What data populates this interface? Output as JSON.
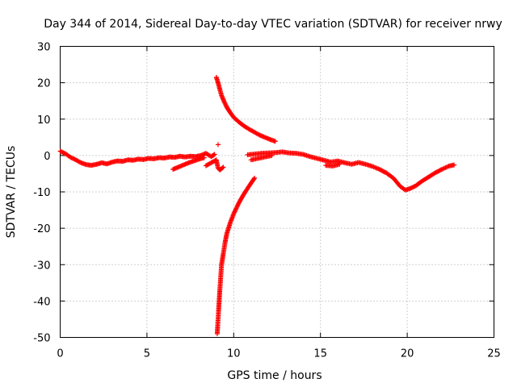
{
  "chart_data": {
    "type": "scatter",
    "title": "Day 344 of 2014, Sidereal Day-to-day VTEC variation (SDTVAR) for receiver nrwy",
    "xlabel": "GPS time / hours",
    "ylabel": "SDTVAR / TECUs",
    "xlim": [
      0,
      25
    ],
    "ylim": [
      -50,
      30
    ],
    "xticks": [
      0,
      5,
      10,
      15,
      20,
      25
    ],
    "yticks": [
      -50,
      -40,
      -30,
      -20,
      -10,
      0,
      10,
      20,
      30
    ],
    "grid": true,
    "marker": "+",
    "color": "#ff0000",
    "series": [
      {
        "name": "main-trace",
        "points": [
          [
            0.0,
            1.2
          ],
          [
            0.3,
            0.5
          ],
          [
            0.6,
            -0.5
          ],
          [
            0.9,
            -1.2
          ],
          [
            1.2,
            -2.0
          ],
          [
            1.5,
            -2.5
          ],
          [
            1.8,
            -2.7
          ],
          [
            2.1,
            -2.4
          ],
          [
            2.4,
            -2.0
          ],
          [
            2.7,
            -2.3
          ],
          [
            3.0,
            -1.8
          ],
          [
            3.3,
            -1.5
          ],
          [
            3.6,
            -1.6
          ],
          [
            3.9,
            -1.2
          ],
          [
            4.2,
            -1.3
          ],
          [
            4.5,
            -1.0
          ],
          [
            4.8,
            -1.1
          ],
          [
            5.1,
            -0.8
          ],
          [
            5.4,
            -0.9
          ],
          [
            5.7,
            -0.6
          ],
          [
            6.0,
            -0.7
          ],
          [
            6.3,
            -0.4
          ],
          [
            6.6,
            -0.5
          ],
          [
            6.9,
            -0.2
          ],
          [
            7.2,
            -0.4
          ],
          [
            7.5,
            -0.2
          ],
          [
            7.8,
            -0.3
          ],
          [
            8.1,
            0.0
          ],
          [
            8.4,
            0.6
          ],
          [
            8.7,
            -0.3
          ],
          [
            8.9,
            0.3
          ]
        ]
      },
      {
        "name": "lower-branch-left",
        "points": [
          [
            6.5,
            -3.8
          ],
          [
            6.8,
            -3.2
          ],
          [
            7.1,
            -2.6
          ],
          [
            7.4,
            -2.0
          ],
          [
            7.7,
            -1.5
          ],
          [
            8.0,
            -1.0
          ],
          [
            8.3,
            -0.6
          ]
        ]
      },
      {
        "name": "upper-right-branch",
        "points": [
          [
            9.0,
            21.5
          ],
          [
            9.1,
            20.0
          ],
          [
            9.2,
            18.2
          ],
          [
            9.3,
            16.5
          ],
          [
            9.45,
            14.8
          ],
          [
            9.6,
            13.3
          ],
          [
            9.8,
            11.8
          ],
          [
            10.0,
            10.5
          ],
          [
            10.3,
            9.2
          ],
          [
            10.6,
            8.1
          ],
          [
            10.9,
            7.2
          ],
          [
            11.2,
            6.4
          ],
          [
            11.5,
            5.6
          ],
          [
            11.8,
            5.0
          ],
          [
            12.1,
            4.4
          ],
          [
            12.4,
            3.9
          ]
        ]
      },
      {
        "name": "lower-right-branch",
        "points": [
          [
            9.05,
            -49.0
          ],
          [
            9.1,
            -45.0
          ],
          [
            9.15,
            -41.0
          ],
          [
            9.2,
            -37.0
          ],
          [
            9.25,
            -33.5
          ],
          [
            9.3,
            -30.0
          ],
          [
            9.4,
            -27.0
          ],
          [
            9.5,
            -24.0
          ],
          [
            9.6,
            -21.5
          ],
          [
            9.8,
            -18.5
          ],
          [
            10.0,
            -16.0
          ],
          [
            10.3,
            -13.0
          ],
          [
            10.6,
            -10.5
          ],
          [
            10.9,
            -8.3
          ],
          [
            11.2,
            -6.2
          ]
        ]
      },
      {
        "name": "lower-left-pocket",
        "points": [
          [
            8.4,
            -2.8
          ],
          [
            8.7,
            -2.0
          ],
          [
            9.0,
            -1.2
          ],
          [
            9.1,
            -3.5
          ],
          [
            9.2,
            -4.0
          ],
          [
            9.4,
            -3.2
          ]
        ]
      },
      {
        "name": "outlier",
        "points": [
          [
            9.1,
            3.0
          ]
        ]
      },
      {
        "name": "afternoon-trace",
        "points": [
          [
            10.8,
            0.2
          ],
          [
            11.2,
            0.4
          ],
          [
            11.6,
            0.6
          ],
          [
            12.0,
            0.7
          ],
          [
            12.4,
            0.8
          ],
          [
            12.8,
            1.0
          ],
          [
            13.2,
            0.7
          ],
          [
            13.6,
            0.6
          ],
          [
            14.0,
            0.3
          ],
          [
            14.4,
            -0.3
          ],
          [
            14.8,
            -0.8
          ],
          [
            15.2,
            -1.3
          ],
          [
            15.6,
            -1.8
          ],
          [
            16.0,
            -1.5
          ],
          [
            16.4,
            -2.0
          ],
          [
            16.8,
            -2.4
          ],
          [
            17.2,
            -1.9
          ],
          [
            17.6,
            -2.4
          ],
          [
            18.0,
            -3.0
          ],
          [
            18.4,
            -3.8
          ],
          [
            18.8,
            -4.8
          ],
          [
            19.2,
            -6.2
          ],
          [
            19.6,
            -8.5
          ],
          [
            19.9,
            -9.5
          ],
          [
            20.2,
            -9.0
          ],
          [
            20.5,
            -8.3
          ],
          [
            20.8,
            -7.2
          ],
          [
            21.2,
            -6.0
          ],
          [
            21.6,
            -4.8
          ],
          [
            22.0,
            -3.8
          ],
          [
            22.4,
            -2.9
          ],
          [
            22.7,
            -2.6
          ]
        ]
      },
      {
        "name": "afternoon-lower",
        "points": [
          [
            11.0,
            -1.2
          ],
          [
            11.4,
            -0.8
          ],
          [
            11.8,
            -0.4
          ],
          [
            12.2,
            0.0
          ]
        ]
      },
      {
        "name": "afternoon-mid",
        "points": [
          [
            15.3,
            -2.7
          ],
          [
            15.7,
            -2.9
          ],
          [
            16.1,
            -2.4
          ]
        ]
      }
    ]
  }
}
